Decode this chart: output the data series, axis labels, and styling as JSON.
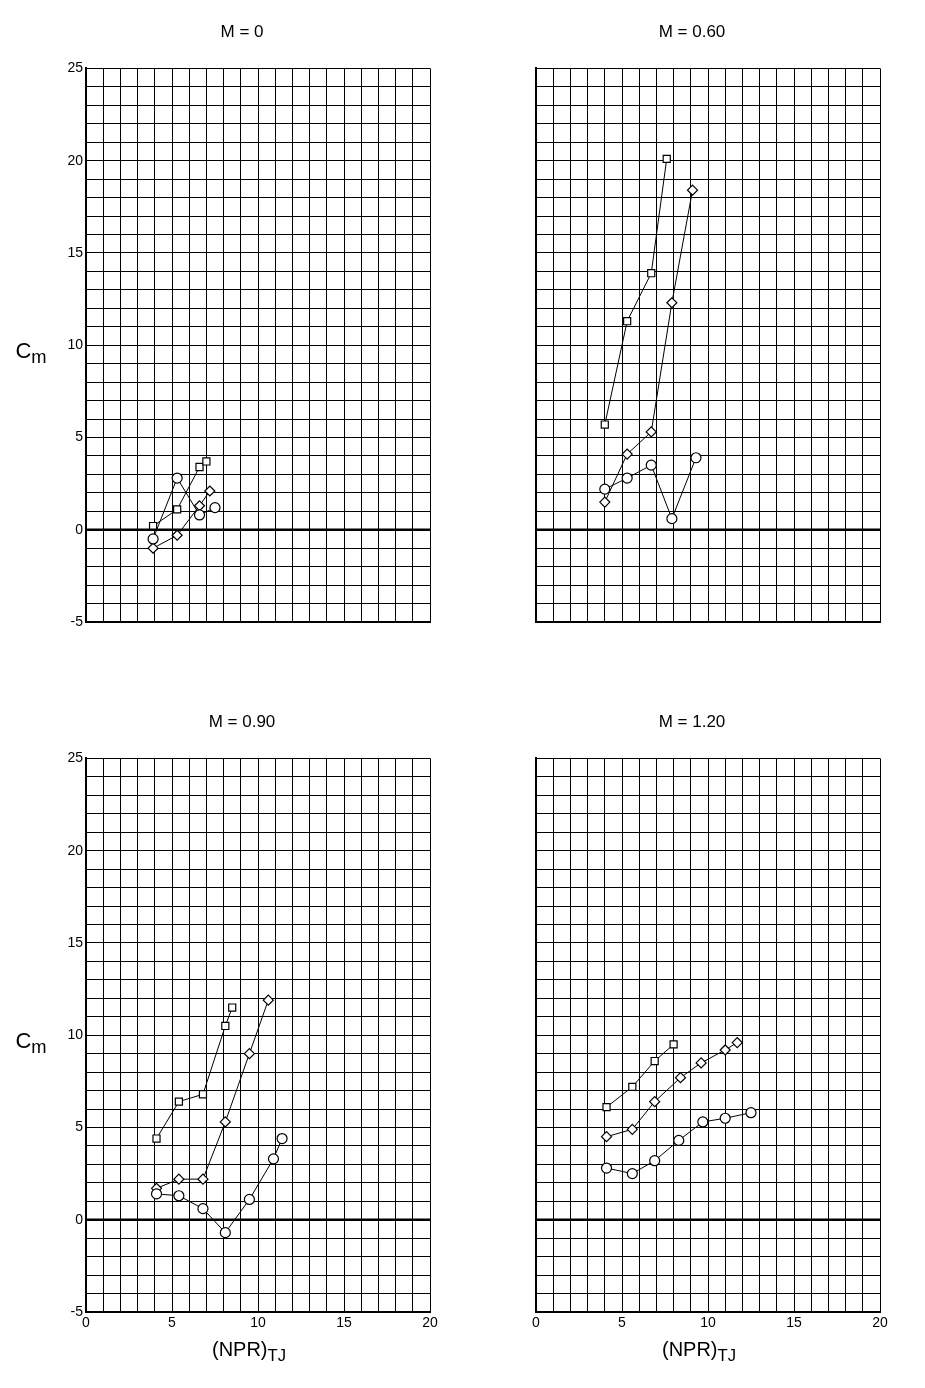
{
  "chart_data": [
    {
      "type": "line",
      "title": "M = 0",
      "ylabel": "C$_{m}$",
      "xlim": [
        0,
        20
      ],
      "ylim": [
        -5,
        25
      ],
      "tick_labels": "y",
      "grid": true,
      "line_style": "solid",
      "xticks": [
        0,
        {
          "value": 1,
          "label": null
        },
        {
          "value": 2,
          "label": null
        },
        {
          "value": 3,
          "label": null
        },
        {
          "value": 4,
          "label": null
        },
        5,
        {
          "value": 6,
          "label": null
        },
        {
          "value": 7,
          "label": null
        },
        {
          "value": 8,
          "label": null
        },
        {
          "value": 9,
          "label": null
        },
        10,
        {
          "value": 11,
          "label": null
        },
        {
          "value": 12,
          "label": null
        },
        {
          "value": 13,
          "label": null
        },
        {
          "value": 14,
          "label": null
        },
        15,
        {
          "value": 16,
          "label": null
        },
        {
          "value": 17,
          "label": null
        },
        {
          "value": 18,
          "label": null
        },
        {
          "value": 19,
          "label": null
        },
        20
      ],
      "yticks": [
        -5,
        {
          "value": -4,
          "label": null
        },
        {
          "value": -3,
          "label": null
        },
        {
          "value": -2,
          "label": null
        },
        {
          "value": -1,
          "label": null
        },
        0,
        {
          "value": 1,
          "label": null
        },
        {
          "value": 2,
          "label": null
        },
        {
          "value": 3,
          "label": null
        },
        {
          "value": 4,
          "label": null
        },
        5,
        {
          "value": 6,
          "label": null
        },
        {
          "value": 7,
          "label": null
        },
        {
          "value": 8,
          "label": null
        },
        {
          "value": 9,
          "label": null
        },
        10,
        {
          "value": 11,
          "label": null
        },
        {
          "value": 12,
          "label": null
        },
        {
          "value": 13,
          "label": null
        },
        {
          "value": 14,
          "label": null
        },
        15,
        {
          "value": 16,
          "label": null
        },
        {
          "value": 17,
          "label": null
        },
        {
          "value": 18,
          "label": null
        },
        {
          "value": 19,
          "label": null
        },
        20,
        {
          "value": 21,
          "label": null
        },
        {
          "value": 22,
          "label": null
        },
        {
          "value": 23,
          "label": null
        },
        {
          "value": 24,
          "label": null
        },
        25
      ],
      "ref_lines": [
        {
          "axis": "y",
          "value": 0,
          "color": "#000000"
        }
      ],
      "series": [
        {
          "color": "#000000",
          "marker": "circle",
          "x": [
            3.9,
            5.3,
            6.6,
            7.5
          ],
          "values": [
            -0.5,
            2.8,
            0.8,
            1.2
          ]
        },
        {
          "color": "#000000",
          "marker": "square",
          "x": [
            3.9,
            5.3,
            6.6,
            7.0
          ],
          "values": [
            0.2,
            1.1,
            3.4,
            3.7
          ]
        },
        {
          "color": "#000000",
          "marker": "diamond",
          "x": [
            3.9,
            5.3,
            6.6,
            7.2
          ],
          "values": [
            -1.0,
            -0.3,
            1.3,
            2.1
          ]
        }
      ]
    },
    {
      "type": "line",
      "title": "M = 0.60",
      "xlim": [
        0,
        20
      ],
      "ylim": [
        -5,
        25
      ],
      "tick_labels": false,
      "grid": true,
      "line_style": "solid",
      "xticks": [
        0,
        {
          "value": 1,
          "label": null
        },
        {
          "value": 2,
          "label": null
        },
        {
          "value": 3,
          "label": null
        },
        {
          "value": 4,
          "label": null
        },
        5,
        {
          "value": 6,
          "label": null
        },
        {
          "value": 7,
          "label": null
        },
        {
          "value": 8,
          "label": null
        },
        {
          "value": 9,
          "label": null
        },
        10,
        {
          "value": 11,
          "label": null
        },
        {
          "value": 12,
          "label": null
        },
        {
          "value": 13,
          "label": null
        },
        {
          "value": 14,
          "label": null
        },
        15,
        {
          "value": 16,
          "label": null
        },
        {
          "value": 17,
          "label": null
        },
        {
          "value": 18,
          "label": null
        },
        {
          "value": 19,
          "label": null
        },
        20
      ],
      "yticks": [
        -5,
        {
          "value": -4,
          "label": null
        },
        {
          "value": -3,
          "label": null
        },
        {
          "value": -2,
          "label": null
        },
        {
          "value": -1,
          "label": null
        },
        0,
        {
          "value": 1,
          "label": null
        },
        {
          "value": 2,
          "label": null
        },
        {
          "value": 3,
          "label": null
        },
        {
          "value": 4,
          "label": null
        },
        5,
        {
          "value": 6,
          "label": null
        },
        {
          "value": 7,
          "label": null
        },
        {
          "value": 8,
          "label": null
        },
        {
          "value": 9,
          "label": null
        },
        10,
        {
          "value": 11,
          "label": null
        },
        {
          "value": 12,
          "label": null
        },
        {
          "value": 13,
          "label": null
        },
        {
          "value": 14,
          "label": null
        },
        15,
        {
          "value": 16,
          "label": null
        },
        {
          "value": 17,
          "label": null
        },
        {
          "value": 18,
          "label": null
        },
        {
          "value": 19,
          "label": null
        },
        20,
        {
          "value": 21,
          "label": null
        },
        {
          "value": 22,
          "label": null
        },
        {
          "value": 23,
          "label": null
        },
        {
          "value": 24,
          "label": null
        },
        25
      ],
      "ref_lines": [
        {
          "axis": "y",
          "value": 0,
          "color": "#000000"
        }
      ],
      "series": [
        {
          "color": "#000000",
          "marker": "circle",
          "x": [
            4.0,
            5.3,
            6.7,
            7.9,
            9.3
          ],
          "values": [
            2.2,
            2.8,
            3.5,
            0.6,
            3.9
          ]
        },
        {
          "color": "#000000",
          "marker": "square",
          "x": [
            4.0,
            5.3,
            6.7,
            7.6
          ],
          "values": [
            5.7,
            11.3,
            13.9,
            20.1
          ]
        },
        {
          "color": "#000000",
          "marker": "diamond",
          "x": [
            4.0,
            5.3,
            6.7,
            7.9,
            9.1
          ],
          "values": [
            1.5,
            4.1,
            5.3,
            12.3,
            18.4
          ]
        }
      ]
    },
    {
      "type": "line",
      "title": "M = 0.90",
      "xlabel": "(NPR)$_{TJ}$",
      "ylabel": "C$_{m}$",
      "xlim": [
        0,
        20
      ],
      "ylim": [
        -5,
        25
      ],
      "grid": true,
      "line_style": "solid",
      "xticks": [
        0,
        {
          "value": 1,
          "label": null
        },
        {
          "value": 2,
          "label": null
        },
        {
          "value": 3,
          "label": null
        },
        {
          "value": 4,
          "label": null
        },
        5,
        {
          "value": 6,
          "label": null
        },
        {
          "value": 7,
          "label": null
        },
        {
          "value": 8,
          "label": null
        },
        {
          "value": 9,
          "label": null
        },
        10,
        {
          "value": 11,
          "label": null
        },
        {
          "value": 12,
          "label": null
        },
        {
          "value": 13,
          "label": null
        },
        {
          "value": 14,
          "label": null
        },
        15,
        {
          "value": 16,
          "label": null
        },
        {
          "value": 17,
          "label": null
        },
        {
          "value": 18,
          "label": null
        },
        {
          "value": 19,
          "label": null
        },
        20
      ],
      "yticks": [
        -5,
        {
          "value": -4,
          "label": null
        },
        {
          "value": -3,
          "label": null
        },
        {
          "value": -2,
          "label": null
        },
        {
          "value": -1,
          "label": null
        },
        0,
        {
          "value": 1,
          "label": null
        },
        {
          "value": 2,
          "label": null
        },
        {
          "value": 3,
          "label": null
        },
        {
          "value": 4,
          "label": null
        },
        5,
        {
          "value": 6,
          "label": null
        },
        {
          "value": 7,
          "label": null
        },
        {
          "value": 8,
          "label": null
        },
        {
          "value": 9,
          "label": null
        },
        10,
        {
          "value": 11,
          "label": null
        },
        {
          "value": 12,
          "label": null
        },
        {
          "value": 13,
          "label": null
        },
        {
          "value": 14,
          "label": null
        },
        15,
        {
          "value": 16,
          "label": null
        },
        {
          "value": 17,
          "label": null
        },
        {
          "value": 18,
          "label": null
        },
        {
          "value": 19,
          "label": null
        },
        20,
        {
          "value": 21,
          "label": null
        },
        {
          "value": 22,
          "label": null
        },
        {
          "value": 23,
          "label": null
        },
        {
          "value": 24,
          "label": null
        },
        25
      ],
      "ref_lines": [
        {
          "axis": "y",
          "value": 0,
          "color": "#000000"
        }
      ],
      "series": [
        {
          "color": "#000000",
          "marker": "circle",
          "x": [
            4.1,
            5.4,
            6.8,
            8.1,
            9.5,
            10.9,
            11.4
          ],
          "values": [
            1.4,
            1.3,
            0.6,
            -0.7,
            1.1,
            3.3,
            4.4
          ]
        },
        {
          "color": "#000000",
          "marker": "square",
          "x": [
            4.1,
            5.4,
            6.8,
            8.1,
            8.5
          ],
          "values": [
            4.4,
            6.4,
            6.8,
            10.5,
            11.5
          ]
        },
        {
          "color": "#000000",
          "marker": "diamond",
          "x": [
            4.1,
            5.4,
            6.8,
            8.1,
            9.5,
            10.6
          ],
          "values": [
            1.7,
            2.2,
            2.2,
            5.3,
            9.0,
            11.9
          ]
        }
      ]
    },
    {
      "type": "line",
      "title": "M = 1.20",
      "xlabel": "(NPR)$_{TJ}$",
      "xlim": [
        0,
        20
      ],
      "ylim": [
        -5,
        25
      ],
      "tick_labels": "x",
      "grid": true,
      "line_style": "solid",
      "xticks": [
        0,
        {
          "value": 1,
          "label": null
        },
        {
          "value": 2,
          "label": null
        },
        {
          "value": 3,
          "label": null
        },
        {
          "value": 4,
          "label": null
        },
        5,
        {
          "value": 6,
          "label": null
        },
        {
          "value": 7,
          "label": null
        },
        {
          "value": 8,
          "label": null
        },
        {
          "value": 9,
          "label": null
        },
        10,
        {
          "value": 11,
          "label": null
        },
        {
          "value": 12,
          "label": null
        },
        {
          "value": 13,
          "label": null
        },
        {
          "value": 14,
          "label": null
        },
        15,
        {
          "value": 16,
          "label": null
        },
        {
          "value": 17,
          "label": null
        },
        {
          "value": 18,
          "label": null
        },
        {
          "value": 19,
          "label": null
        },
        20
      ],
      "yticks": [
        -5,
        {
          "value": -4,
          "label": null
        },
        {
          "value": -3,
          "label": null
        },
        {
          "value": -2,
          "label": null
        },
        {
          "value": -1,
          "label": null
        },
        0,
        {
          "value": 1,
          "label": null
        },
        {
          "value": 2,
          "label": null
        },
        {
          "value": 3,
          "label": null
        },
        {
          "value": 4,
          "label": null
        },
        5,
        {
          "value": 6,
          "label": null
        },
        {
          "value": 7,
          "label": null
        },
        {
          "value": 8,
          "label": null
        },
        {
          "value": 9,
          "label": null
        },
        10,
        {
          "value": 11,
          "label": null
        },
        {
          "value": 12,
          "label": null
        },
        {
          "value": 13,
          "label": null
        },
        {
          "value": 14,
          "label": null
        },
        15,
        {
          "value": 16,
          "label": null
        },
        {
          "value": 17,
          "label": null
        },
        {
          "value": 18,
          "label": null
        },
        {
          "value": 19,
          "label": null
        },
        20,
        {
          "value": 21,
          "label": null
        },
        {
          "value": 22,
          "label": null
        },
        {
          "value": 23,
          "label": null
        },
        {
          "value": 24,
          "label": null
        },
        25
      ],
      "ref_lines": [
        {
          "axis": "y",
          "value": 0,
          "color": "#000000"
        }
      ],
      "series": [
        {
          "color": "#000000",
          "marker": "circle",
          "x": [
            4.1,
            5.6,
            6.9,
            8.3,
            9.7,
            11.0,
            12.5
          ],
          "values": [
            2.8,
            2.5,
            3.2,
            4.3,
            5.3,
            5.5,
            5.8
          ]
        },
        {
          "color": "#000000",
          "marker": "square",
          "x": [
            4.1,
            5.6,
            6.9,
            8.0
          ],
          "values": [
            6.1,
            7.2,
            8.6,
            9.5
          ]
        },
        {
          "color": "#000000",
          "marker": "diamond",
          "x": [
            4.1,
            5.6,
            6.9,
            8.4,
            9.6,
            11.0,
            11.7
          ],
          "values": [
            4.5,
            4.9,
            6.4,
            7.7,
            8.5,
            9.2,
            9.6
          ]
        }
      ]
    }
  ]
}
